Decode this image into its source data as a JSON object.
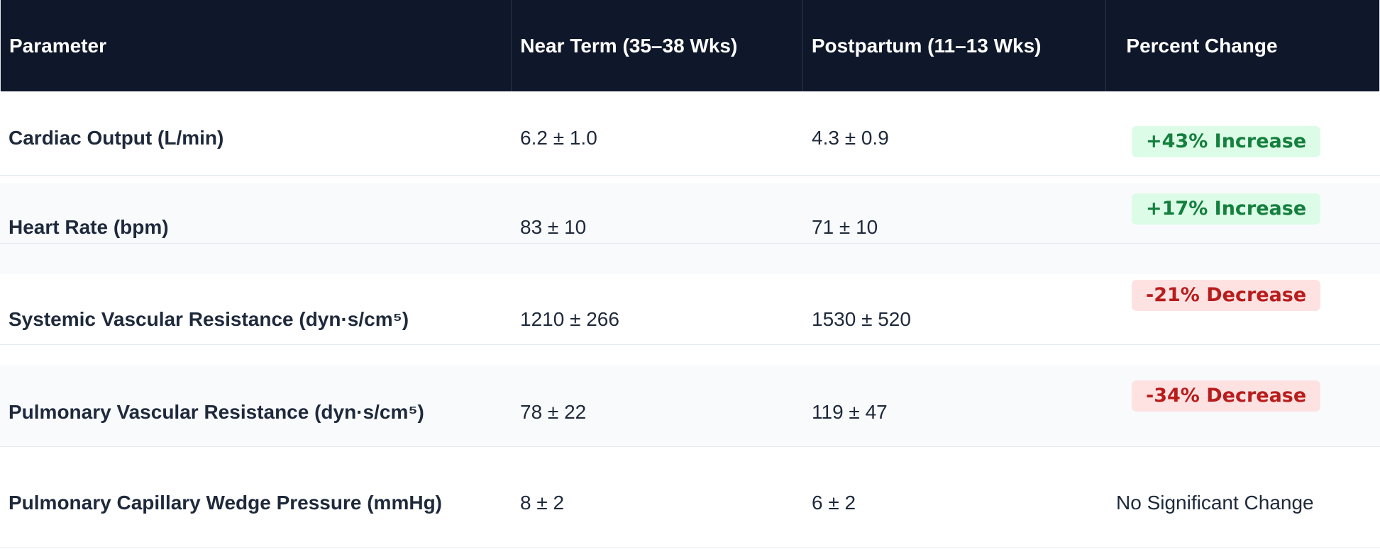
{
  "table": {
    "headers": [
      "Parameter",
      "Near Term (35–38 Wks)",
      "Postpartum (11–13 Wks)",
      "Percent Change"
    ],
    "rows": [
      {
        "parameter": "Cardiac Output (L/min)",
        "near_term": "6.2 ± 1.0",
        "postpartum": "4.3 ± 0.9",
        "change": "+43% Increase",
        "change_type": "increase"
      },
      {
        "parameter": "Heart Rate (bpm)",
        "near_term": "83 ± 10",
        "postpartum": "71 ± 10",
        "change": "+17% Increase",
        "change_type": "increase"
      },
      {
        "parameter": "Systemic Vascular Resistance (dyn·s/cm⁵)",
        "near_term": "1210 ± 266",
        "postpartum": "1530 ± 520",
        "change": "-21% Decrease",
        "change_type": "decrease"
      },
      {
        "parameter": "Pulmonary Vascular Resistance (dyn·s/cm⁵)",
        "near_term": "78 ± 22",
        "postpartum": "119 ± 47",
        "change": "-34% Decrease",
        "change_type": "decrease"
      },
      {
        "parameter": "Pulmonary Capillary Wedge Pressure (mmHg)",
        "near_term": "8 ± 2",
        "postpartum": "6 ± 2",
        "change": "No Significant Change",
        "change_type": "none"
      }
    ],
    "colors": {
      "header_bg": "#0f172a",
      "increase_bg": "#dcfce7",
      "increase_text": "#15803d",
      "decrease_bg": "#fee2e2",
      "decrease_text": "#b91c1c"
    }
  }
}
